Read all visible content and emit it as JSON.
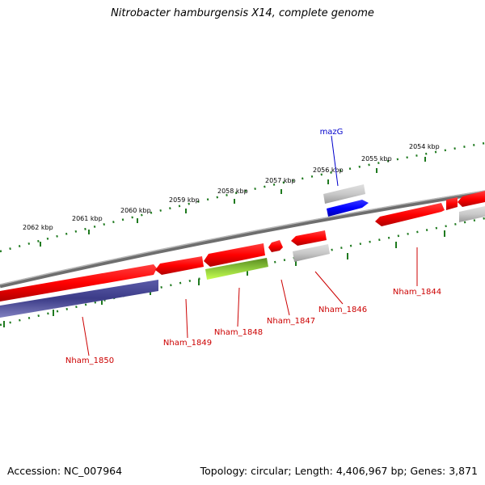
{
  "title": "Nitrobacter hamburgensis X14, complete genome",
  "footer": {
    "accession": "Accession: NC_007964",
    "summary": "Topology: circular; Length: 4,406,967 bp; Genes: 3,871"
  },
  "colors": {
    "backbone": "#8a8a8a",
    "scale": "#1f7a1f",
    "gene_label": "#cc0000",
    "highlight_label": "#0000cc"
  },
  "scale_labels": [
    "2062 kbp",
    "2061 kbp",
    "2060 kbp",
    "2059 kbp",
    "2058 kbp",
    "2057 kbp",
    "2056 kbp",
    "2055 kbp",
    "2054 kbp"
  ],
  "gene_labels": [
    {
      "text": "mazG",
      "color": "#0000cc"
    },
    {
      "text": "Nham_1844",
      "color": "#cc0000"
    },
    {
      "text": "Nham_1846",
      "color": "#cc0000"
    },
    {
      "text": "Nham_1847",
      "color": "#cc0000"
    },
    {
      "text": "Nham_1848",
      "color": "#cc0000"
    },
    {
      "text": "Nham_1849",
      "color": "#cc0000"
    },
    {
      "text": "Nham_1850",
      "color": "#cc0000"
    }
  ]
}
